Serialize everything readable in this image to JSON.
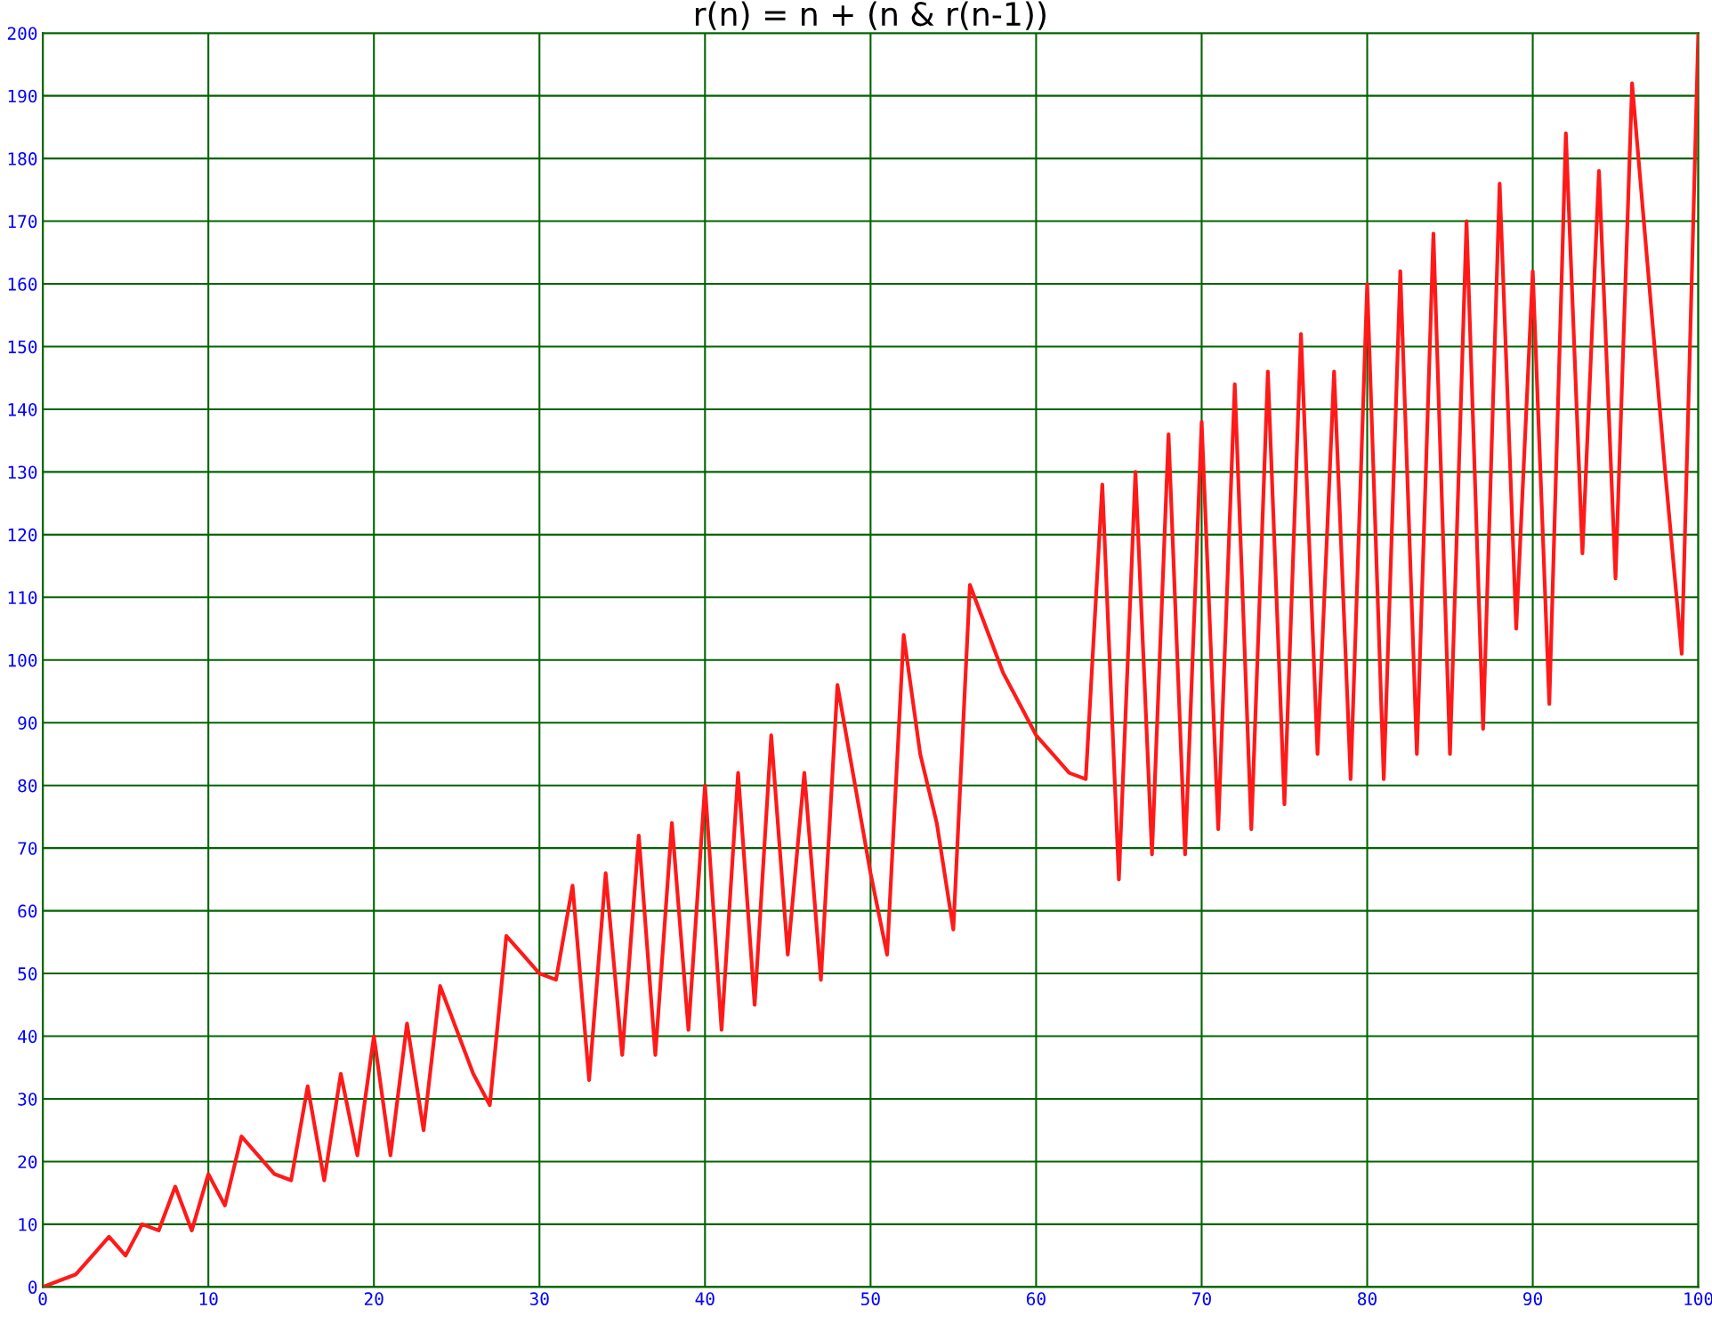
{
  "chart_data": {
    "type": "line",
    "title": "r(n) = n + (n & r(n-1))",
    "x": [
      0,
      1,
      2,
      3,
      4,
      5,
      6,
      7,
      8,
      9,
      10,
      11,
      12,
      13,
      14,
      15,
      16,
      17,
      18,
      19,
      20,
      21,
      22,
      23,
      24,
      25,
      26,
      27,
      28,
      29,
      30,
      31,
      32,
      33,
      34,
      35,
      36,
      37,
      38,
      39,
      40,
      41,
      42,
      43,
      44,
      45,
      46,
      47,
      48,
      49,
      50,
      51,
      52,
      53,
      54,
      55,
      56,
      57,
      58,
      59,
      60,
      61,
      62,
      63,
      64,
      65,
      66,
      67,
      68,
      69,
      70,
      71,
      72,
      73,
      74,
      75,
      76,
      77,
      78,
      79,
      80,
      81,
      82,
      83,
      84,
      85,
      86,
      87,
      88,
      89,
      90,
      91,
      92,
      93,
      94,
      95,
      96,
      97,
      98,
      99,
      100
    ],
    "series": [
      {
        "color": "#ff1a1a",
        "values": [
          0,
          1,
          2,
          5,
          8,
          5,
          10,
          9,
          16,
          9,
          18,
          13,
          24,
          21,
          18,
          17,
          32,
          17,
          34,
          21,
          40,
          21,
          42,
          25,
          48,
          41,
          34,
          29,
          56,
          53,
          50,
          49,
          64,
          33,
          66,
          37,
          72,
          37,
          74,
          41,
          80,
          41,
          82,
          45,
          88,
          53,
          82,
          49,
          96,
          81,
          66,
          53,
          104,
          85,
          74,
          57,
          112,
          105,
          98,
          93,
          88,
          85,
          82,
          81,
          128,
          65,
          130,
          69,
          136,
          69,
          138,
          73,
          144,
          73,
          146,
          77,
          152,
          85,
          146,
          81,
          160,
          81,
          162,
          85,
          168,
          85,
          170,
          89,
          176,
          105,
          162,
          93,
          184,
          117,
          178,
          113,
          192,
          161,
          130,
          101,
          200
        ]
      }
    ],
    "xlim": [
      0,
      100
    ],
    "xticks": [
      0,
      10,
      20,
      30,
      40,
      50,
      60,
      70,
      80,
      90,
      100
    ],
    "ylim": [
      0,
      200
    ],
    "yticks": [
      0,
      10,
      20,
      30,
      40,
      50,
      60,
      70,
      80,
      90,
      100,
      110,
      120,
      130,
      140,
      150,
      160,
      170,
      180,
      190,
      200
    ],
    "grid": true,
    "legend": false,
    "marker": "none",
    "line_style": "solid"
  }
}
